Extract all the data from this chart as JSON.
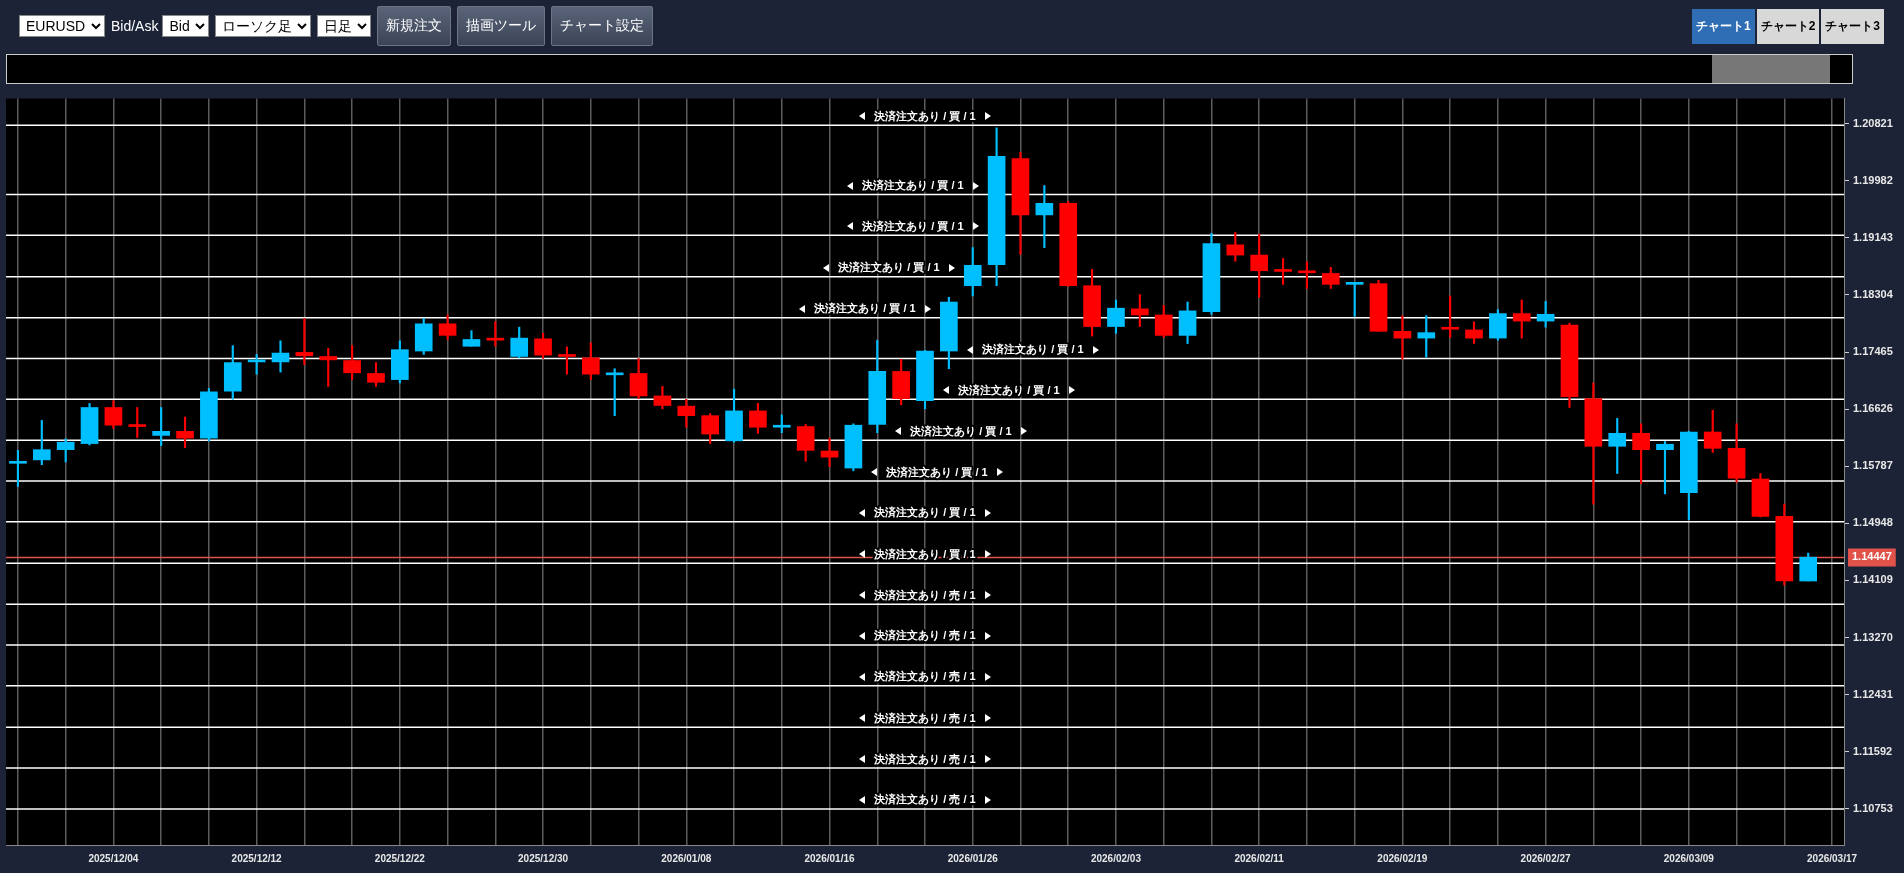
{
  "chart_data": {
    "type": "candlestick",
    "categories": [
      null,
      null,
      null,
      null,
      "2025/12/04",
      null,
      null,
      null,
      null,
      null,
      "2025/12/12",
      null,
      null,
      null,
      null,
      null,
      "2025/12/22",
      null,
      null,
      null,
      null,
      null,
      "2025/12/30",
      null,
      null,
      null,
      null,
      null,
      "2026/01/08",
      null,
      null,
      null,
      null,
      null,
      "2026/01/16",
      null,
      null,
      null,
      null,
      null,
      "2026/01/26",
      null,
      null,
      null,
      null,
      null,
      "2026/02/03",
      null,
      null,
      null,
      null,
      null,
      "2026/02/11",
      null,
      null,
      null,
      null,
      null,
      "2026/02/19",
      null,
      null,
      null,
      null,
      null,
      "2026/02/27",
      null,
      null,
      null,
      null,
      null,
      "2026/03/09",
      null,
      null,
      null,
      null,
      null,
      "2026/03/17"
    ],
    "ohlc": [
      [
        1.1583,
        1.1602,
        1.1549,
        1.1585
      ],
      [
        1.1588,
        1.1646,
        1.1581,
        1.1603
      ],
      [
        1.1603,
        1.1619,
        1.1585,
        1.1614
      ],
      [
        1.1612,
        1.1671,
        1.161,
        1.1665
      ],
      [
        1.1665,
        1.1675,
        1.1634,
        1.1639
      ],
      [
        1.1638,
        1.1665,
        1.1621,
        1.1637
      ],
      [
        1.1624,
        1.1665,
        1.1609,
        1.163
      ],
      [
        1.163,
        1.1651,
        1.1606,
        1.162
      ],
      [
        1.162,
        1.1693,
        1.1616,
        1.1688
      ],
      [
        1.1689,
        1.1756,
        1.1677,
        1.1731
      ],
      [
        1.1732,
        1.1743,
        1.1714,
        1.1733
      ],
      [
        1.1732,
        1.1763,
        1.1717,
        1.1745
      ],
      [
        1.1746,
        1.1796,
        1.1728,
        1.1741
      ],
      [
        1.174,
        1.1752,
        1.1696,
        1.1735
      ],
      [
        1.1734,
        1.1756,
        1.1706,
        1.1716
      ],
      [
        1.1715,
        1.1731,
        1.1696,
        1.1702
      ],
      [
        1.1706,
        1.1763,
        1.1701,
        1.175
      ],
      [
        1.1748,
        1.1796,
        1.1743,
        1.1788
      ],
      [
        1.1788,
        1.1801,
        1.1765,
        1.1771
      ],
      [
        1.1755,
        1.1778,
        1.1755,
        1.1765
      ],
      [
        1.1765,
        1.1791,
        1.1755,
        1.1764
      ],
      [
        1.174,
        1.1783,
        1.1738,
        1.1767
      ],
      [
        1.1766,
        1.1774,
        1.1737,
        1.1742
      ],
      [
        1.1741,
        1.1754,
        1.1714,
        1.174
      ],
      [
        1.1738,
        1.176,
        1.1706,
        1.1714
      ],
      [
        1.1713,
        1.1722,
        1.1653,
        1.1714
      ],
      [
        1.1715,
        1.1737,
        1.1678,
        1.1682
      ],
      [
        1.1682,
        1.1696,
        1.1663,
        1.1668
      ],
      [
        1.1667,
        1.1677,
        1.1636,
        1.1653
      ],
      [
        1.1653,
        1.1656,
        1.1612,
        1.1626
      ],
      [
        1.1616,
        1.1692,
        1.1614,
        1.166
      ],
      [
        1.166,
        1.1671,
        1.1627,
        1.1636
      ],
      [
        1.1636,
        1.1654,
        1.1628,
        1.1637
      ],
      [
        1.1637,
        1.164,
        1.1586,
        1.1602
      ],
      [
        1.1601,
        1.162,
        1.1578,
        1.1592
      ],
      [
        1.1576,
        1.1641,
        1.1572,
        1.1639
      ],
      [
        1.164,
        1.1764,
        1.1628,
        1.1718
      ],
      [
        1.1718,
        1.1736,
        1.1669,
        1.1678
      ],
      [
        1.1675,
        1.1749,
        1.1663,
        1.1748
      ],
      [
        1.1748,
        1.1827,
        1.1722,
        1.182
      ],
      [
        1.1844,
        1.19,
        1.1829,
        1.1874
      ],
      [
        1.1875,
        1.2076,
        1.1844,
        1.2034
      ],
      [
        1.2031,
        1.204,
        1.189,
        1.1948
      ],
      [
        1.1948,
        1.1991,
        1.19,
        1.1965
      ],
      [
        1.1965,
        1.1968,
        1.1843,
        1.1844
      ],
      [
        1.1844,
        1.1868,
        1.177,
        1.1784
      ],
      [
        1.1784,
        1.1823,
        1.1774,
        1.1811
      ],
      [
        1.181,
        1.1831,
        1.1784,
        1.1801
      ],
      [
        1.1801,
        1.1815,
        1.1768,
        1.1771
      ],
      [
        1.1771,
        1.182,
        1.1759,
        1.1807
      ],
      [
        1.1806,
        1.1921,
        1.1802,
        1.1906
      ],
      [
        1.1904,
        1.1922,
        1.188,
        1.1889
      ],
      [
        1.1889,
        1.192,
        1.1827,
        1.1866
      ],
      [
        1.1866,
        1.1884,
        1.1846,
        1.1865
      ],
      [
        1.1864,
        1.1879,
        1.184,
        1.1863
      ],
      [
        1.1862,
        1.1871,
        1.184,
        1.1846
      ],
      [
        1.1846,
        1.1849,
        1.1799,
        1.1849
      ],
      [
        1.1847,
        1.1852,
        1.1777,
        1.1777
      ],
      [
        1.1777,
        1.18,
        1.1736,
        1.1767
      ],
      [
        1.1767,
        1.18,
        1.1739,
        1.1775
      ],
      [
        1.1781,
        1.1829,
        1.1768,
        1.178
      ],
      [
        1.1779,
        1.1791,
        1.1759,
        1.1767
      ],
      [
        1.1767,
        1.1809,
        1.1764,
        1.1803
      ],
      [
        1.1803,
        1.1823,
        1.1767,
        1.1792
      ],
      [
        1.1792,
        1.1821,
        1.1783,
        1.1802
      ],
      [
        1.1786,
        1.1789,
        1.1665,
        1.1681
      ],
      [
        1.1678,
        1.1701,
        1.1523,
        1.1608
      ],
      [
        1.1608,
        1.1649,
        1.1568,
        1.1627
      ],
      [
        1.1627,
        1.1641,
        1.1553,
        1.1603
      ],
      [
        1.1603,
        1.1615,
        1.1538,
        1.1611
      ],
      [
        1.154,
        1.163,
        1.15,
        1.1629
      ],
      [
        1.1629,
        1.1661,
        1.1599,
        1.1605
      ],
      [
        1.1605,
        1.1641,
        1.1555,
        1.1561
      ],
      [
        1.156,
        1.1568,
        1.1504,
        1.1505
      ],
      [
        1.1505,
        1.1523,
        1.1404,
        1.141
      ],
      [
        1.141,
        1.1451,
        1.141,
        1.1445
      ],
      null
    ],
    "colors": [
      "#00bfff",
      "#00bfff",
      "#00bfff",
      "#00bfff",
      "#ff0000",
      "#ff0000",
      "#00bfff",
      "#ff0000",
      "#00bfff",
      "#00bfff",
      "#00bfff",
      "#00bfff",
      "#ff0000",
      "#ff0000",
      "#ff0000",
      "#ff0000",
      "#00bfff",
      "#00bfff",
      "#ff0000",
      "#00bfff",
      "#ff0000",
      "#00bfff",
      "#ff0000",
      "#ff0000",
      "#ff0000",
      "#00bfff",
      "#ff0000",
      "#ff0000",
      "#ff0000",
      "#ff0000",
      "#00bfff",
      "#ff0000",
      "#00bfff",
      "#ff0000",
      "#ff0000",
      "#00bfff",
      "#00bfff",
      "#ff0000",
      "#00bfff",
      "#00bfff",
      "#00bfff",
      "#00bfff",
      "#ff0000",
      "#00bfff",
      "#ff0000",
      "#ff0000",
      "#00bfff",
      "#ff0000",
      "#ff0000",
      "#00bfff",
      "#00bfff",
      "#ff0000",
      "#ff0000",
      "#ff0000",
      "#ff0000",
      "#ff0000",
      "#00bfff",
      "#ff0000",
      "#ff0000",
      "#00bfff",
      "#ff0000",
      "#ff0000",
      "#00bfff",
      "#ff0000",
      "#00bfff",
      "#ff0000",
      "#ff0000",
      "#00bfff",
      "#ff0000",
      "#00bfff",
      "#00bfff",
      "#ff0000",
      "#ff0000",
      "#ff0000",
      "#ff0000",
      "#00bfff",
      null
    ],
    "ylim": [
      1.1022,
      1.2119
    ],
    "yticks": [
      1.20821,
      1.19982,
      1.19143,
      1.18304,
      1.17465,
      1.16626,
      1.15787,
      1.14948,
      1.14109,
      {
        "value": 1.1327,
        "label": "1.13270"
      },
      1.12431,
      1.11592,
      1.10753
    ],
    "grid": "x",
    "ref_lines": [
      {
        "axis": "y",
        "value": 1.208,
        "label": "決済注文あり / 買 / 1",
        "color": "#ffffff"
      },
      {
        "axis": "y",
        "value": 1.1978,
        "label": "決済注文あり / 買 / 1",
        "color": "#ffffff"
      },
      {
        "axis": "y",
        "value": 1.1918,
        "label": "決済注文あり / 買 / 1",
        "color": "#ffffff"
      },
      {
        "axis": "y",
        "value": 1.1857,
        "label": "決済注文あり / 買 / 1",
        "color": "#ffffff"
      },
      {
        "axis": "y",
        "value": 1.1797,
        "label": "決済注文あり / 買 / 1",
        "color": "#ffffff"
      },
      {
        "axis": "y",
        "value": 1.1737,
        "label": "決済注文あり / 買 / 1",
        "color": "#ffffff"
      },
      {
        "axis": "y",
        "value": 1.1677,
        "label": "決済注文あり / 買 / 1",
        "color": "#ffffff"
      },
      {
        "axis": "y",
        "value": 1.1617,
        "label": "決済注文あり / 買 / 1",
        "color": "#ffffff"
      },
      {
        "axis": "y",
        "value": 1.1557,
        "label": "決済注文あり / 買 / 1",
        "color": "#ffffff"
      },
      {
        "axis": "y",
        "value": 1.1497,
        "label": "決済注文あり / 買 / 1",
        "color": "#ffffff"
      },
      {
        "axis": "y",
        "value": 1.1436,
        "label": "決済注文あり / 買 / 1",
        "color": "#ffffff"
      },
      {
        "axis": "y",
        "value": 1.1376,
        "label": "決済注文あり / 売 / 1",
        "color": "#ffffff"
      },
      {
        "axis": "y",
        "value": 1.1316,
        "label": "決済注文あり / 売 / 1",
        "color": "#ffffff"
      },
      {
        "axis": "y",
        "value": 1.1256,
        "label": "決済注文あり / 売 / 1",
        "color": "#ffffff"
      },
      {
        "axis": "y",
        "value": 1.1195,
        "label": "決済注文あり / 売 / 1",
        "color": "#ffffff"
      },
      {
        "axis": "y",
        "value": 1.1135,
        "label": "決済注文あり / 売 / 1",
        "color": "#ffffff"
      },
      {
        "axis": "y",
        "value": 1.1075,
        "label": "決済注文あり / 売 / 1",
        "color": "#ffffff"
      },
      {
        "axis": "y",
        "value": 1.14447,
        "label": "1.14447",
        "color": "#e0524a"
      }
    ],
    "annotations": [
      "EURUSD",
      "Bid/Ask",
      "Bid",
      "ローソク足",
      "日足",
      "新規注文",
      "描画ツール",
      "チャート設定",
      "チャート1",
      "チャート2",
      "チャート3"
    ]
  }
}
